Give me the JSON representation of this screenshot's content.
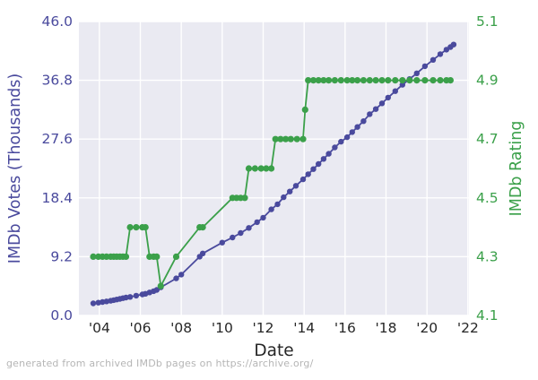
{
  "figure": {
    "background": "#ffffff",
    "plot_background": "#eaeaf2",
    "grid_color": "#ffffff",
    "tick_text_color": "#262626"
  },
  "footer": "generated from archived IMDb pages on https://archive.org/",
  "chart_data": {
    "type": "line",
    "title": "",
    "xlabel": "Date",
    "grid": true,
    "legend_position": "none",
    "x_axis": {
      "label": "Date",
      "tick_labels": [
        "'04",
        "'06",
        "'08",
        "'10",
        "'12",
        "'14",
        "'16",
        "'18",
        "'20",
        "'22"
      ],
      "tick_years": [
        2004,
        2006,
        2008,
        2010,
        2012,
        2014,
        2016,
        2018,
        2020,
        2022
      ],
      "range": [
        2003.0,
        2022.05
      ]
    },
    "left_axis": {
      "label": "IMDb Votes (Thousands)",
      "color": "#4a4a9d",
      "tick_labels": [
        "0.0",
        "9.2",
        "18.4",
        "27.6",
        "36.8",
        "46.0"
      ],
      "tick_values": [
        0.0,
        9.2,
        18.4,
        27.6,
        36.8,
        46.0
      ],
      "range": [
        0.0,
        46.0
      ]
    },
    "right_axis": {
      "label": "IMDb Rating",
      "color": "#3ba04a",
      "tick_labels": [
        "4.1",
        "4.3",
        "4.5",
        "4.7",
        "4.9",
        "5.1"
      ],
      "tick_values": [
        4.1,
        4.3,
        4.5,
        4.7,
        4.9,
        5.1
      ],
      "range": [
        4.1,
        5.1
      ]
    },
    "series": [
      {
        "id": "votes",
        "name": "IMDb Votes (Thousands)",
        "axis": "left",
        "color": "#4a4a9d",
        "marker_radius": 3.2,
        "line_width": 1.8,
        "x": [
          2003.7,
          2003.95,
          2004.15,
          2004.35,
          2004.55,
          2004.7,
          2004.85,
          2005.0,
          2005.15,
          2005.3,
          2005.5,
          2005.8,
          2006.1,
          2006.25,
          2006.45,
          2006.65,
          2006.8,
          2007.0,
          2007.75,
          2008.0,
          2008.9,
          2009.05,
          2010.0,
          2010.5,
          2010.9,
          2011.3,
          2011.7,
          2012.0,
          2012.4,
          2012.7,
          2013.0,
          2013.3,
          2013.6,
          2013.95,
          2014.2,
          2014.45,
          2014.7,
          2014.95,
          2015.2,
          2015.5,
          2015.8,
          2016.1,
          2016.35,
          2016.6,
          2016.9,
          2017.2,
          2017.5,
          2017.8,
          2018.1,
          2018.45,
          2018.8,
          2019.15,
          2019.5,
          2019.9,
          2020.3,
          2020.65,
          2020.95,
          2021.15,
          2021.3
        ],
        "values": [
          1.9,
          2.0,
          2.1,
          2.2,
          2.3,
          2.4,
          2.5,
          2.6,
          2.7,
          2.8,
          2.9,
          3.1,
          3.3,
          3.4,
          3.6,
          3.8,
          4.0,
          4.4,
          5.8,
          6.4,
          9.2,
          9.7,
          11.4,
          12.2,
          12.9,
          13.7,
          14.6,
          15.3,
          16.6,
          17.4,
          18.5,
          19.4,
          20.3,
          21.3,
          22.1,
          22.9,
          23.7,
          24.5,
          25.3,
          26.3,
          27.2,
          27.9,
          28.7,
          29.5,
          30.4,
          31.5,
          32.3,
          33.2,
          34.1,
          35.1,
          36.1,
          37.0,
          37.9,
          39.0,
          40.0,
          40.9,
          41.6,
          42.0,
          42.4
        ]
      },
      {
        "id": "rating",
        "name": "IMDb Rating",
        "axis": "right",
        "color": "#3ba04a",
        "marker_radius": 3.6,
        "line_width": 1.8,
        "x": [
          2003.7,
          2003.95,
          2004.15,
          2004.35,
          2004.55,
          2004.7,
          2004.85,
          2005.0,
          2005.15,
          2005.3,
          2005.5,
          2005.8,
          2006.1,
          2006.25,
          2006.45,
          2006.65,
          2006.8,
          2007.0,
          2007.75,
          2008.9,
          2009.05,
          2010.5,
          2010.7,
          2010.9,
          2011.1,
          2011.3,
          2011.6,
          2011.9,
          2012.15,
          2012.4,
          2012.6,
          2012.85,
          2013.1,
          2013.35,
          2013.65,
          2013.95,
          2014.05,
          2014.2,
          2014.45,
          2014.7,
          2014.95,
          2015.2,
          2015.5,
          2015.8,
          2016.1,
          2016.35,
          2016.6,
          2016.9,
          2017.2,
          2017.5,
          2017.8,
          2018.1,
          2018.45,
          2018.8,
          2019.15,
          2019.5,
          2019.9,
          2020.3,
          2020.65,
          2020.95,
          2021.15
        ],
        "values": [
          4.3,
          4.3,
          4.3,
          4.3,
          4.3,
          4.3,
          4.3,
          4.3,
          4.3,
          4.3,
          4.4,
          4.4,
          4.4,
          4.4,
          4.3,
          4.3,
          4.3,
          4.2,
          4.3,
          4.4,
          4.4,
          4.5,
          4.5,
          4.5,
          4.5,
          4.6,
          4.6,
          4.6,
          4.6,
          4.6,
          4.7,
          4.7,
          4.7,
          4.7,
          4.7,
          4.7,
          4.8,
          4.9,
          4.9,
          4.9,
          4.9,
          4.9,
          4.9,
          4.9,
          4.9,
          4.9,
          4.9,
          4.9,
          4.9,
          4.9,
          4.9,
          4.9,
          4.9,
          4.9,
          4.9,
          4.9,
          4.9,
          4.9,
          4.9,
          4.9,
          4.9
        ]
      }
    ]
  }
}
